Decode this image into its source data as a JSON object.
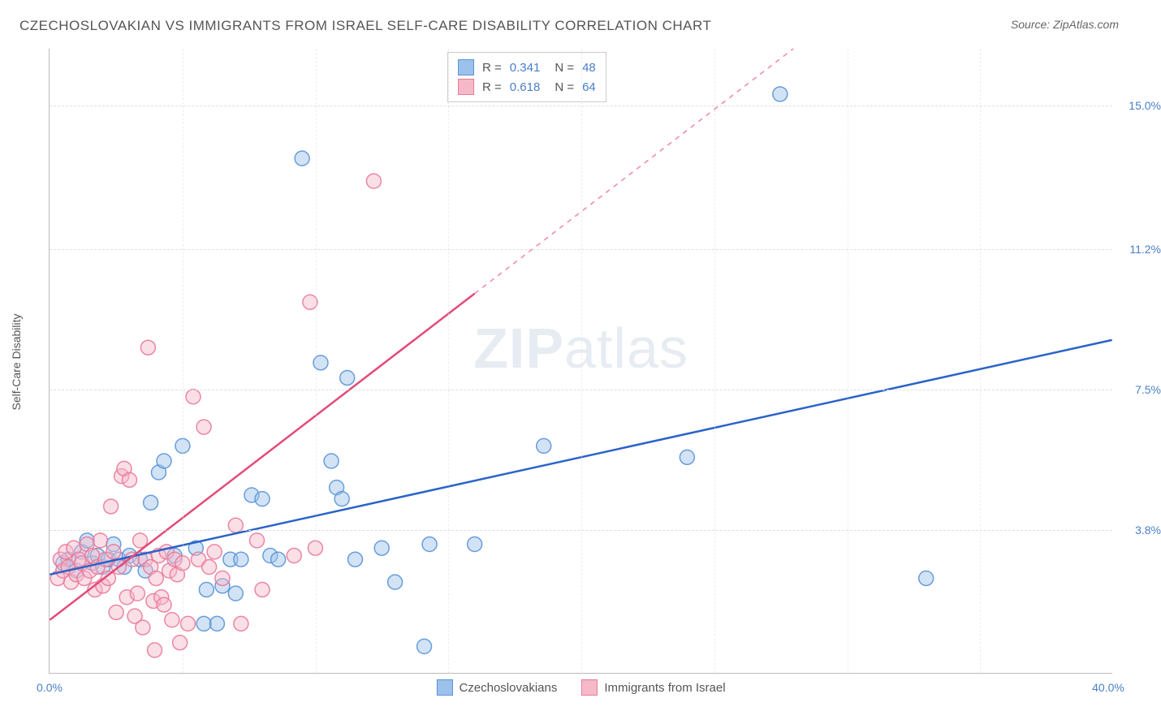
{
  "title": "CZECHOSLOVAKIAN VS IMMIGRANTS FROM ISRAEL SELF-CARE DISABILITY CORRELATION CHART",
  "source_label": "Source: ZipAtlas.com",
  "y_axis_label": "Self-Care Disability",
  "watermark_a": "ZIP",
  "watermark_b": "atlas",
  "chart": {
    "type": "scatter",
    "xlim": [
      0,
      40
    ],
    "ylim": [
      0,
      16.5
    ],
    "x_ticks_label_min": "0.0%",
    "x_ticks_label_max": "40.0%",
    "x_minor_ticks": [
      0,
      5,
      10,
      15,
      20,
      25,
      30,
      35,
      40
    ],
    "y_ticks": [
      3.8,
      7.5,
      11.2,
      15.0
    ],
    "y_tick_labels": [
      "3.8%",
      "7.5%",
      "11.2%",
      "15.0%"
    ],
    "background_color": "#ffffff",
    "grid_color": "#dddddd",
    "axis_color": "#bbbbbb",
    "tick_label_color": "#4a7ec9",
    "marker_radius": 9,
    "marker_opacity": 0.45,
    "marker_stroke_opacity": 0.9,
    "series": [
      {
        "name": "Czechoslovakians",
        "color_fill": "#9cc1ea",
        "color_stroke": "#5a94d6",
        "R": "0.341",
        "N": "48",
        "trend": {
          "x1": 0,
          "y1": 2.6,
          "x2": 40,
          "y2": 8.8,
          "color": "#2a63c9",
          "width": 2.5,
          "dash_after_x": null
        },
        "points": [
          [
            0.5,
            2.9
          ],
          [
            0.7,
            3.0
          ],
          [
            1.0,
            2.7
          ],
          [
            1.2,
            3.2
          ],
          [
            1.4,
            3.5
          ],
          [
            1.6,
            2.9
          ],
          [
            1.8,
            3.1
          ],
          [
            2.0,
            2.8
          ],
          [
            2.2,
            3.0
          ],
          [
            2.4,
            3.4
          ],
          [
            2.6,
            3.0
          ],
          [
            2.8,
            2.8
          ],
          [
            3.0,
            3.1
          ],
          [
            3.4,
            3.0
          ],
          [
            3.6,
            2.7
          ],
          [
            3.8,
            4.5
          ],
          [
            4.1,
            5.3
          ],
          [
            4.3,
            5.6
          ],
          [
            4.7,
            3.1
          ],
          [
            5.0,
            6.0
          ],
          [
            5.5,
            3.3
          ],
          [
            5.8,
            1.3
          ],
          [
            5.9,
            2.2
          ],
          [
            6.3,
            1.3
          ],
          [
            6.5,
            2.3
          ],
          [
            6.8,
            3.0
          ],
          [
            7.0,
            2.1
          ],
          [
            7.2,
            3.0
          ],
          [
            7.6,
            4.7
          ],
          [
            8.0,
            4.6
          ],
          [
            8.3,
            3.1
          ],
          [
            8.6,
            3.0
          ],
          [
            9.5,
            13.6
          ],
          [
            10.2,
            8.2
          ],
          [
            10.6,
            5.6
          ],
          [
            10.8,
            4.9
          ],
          [
            11.0,
            4.6
          ],
          [
            11.2,
            7.8
          ],
          [
            11.5,
            3.0
          ],
          [
            12.5,
            3.3
          ],
          [
            13.0,
            2.4
          ],
          [
            14.1,
            0.7
          ],
          [
            14.3,
            3.4
          ],
          [
            16.0,
            3.4
          ],
          [
            18.6,
            6.0
          ],
          [
            24.0,
            5.7
          ],
          [
            27.5,
            15.3
          ],
          [
            33.0,
            2.5
          ]
        ]
      },
      {
        "name": "Immigrants from Israel",
        "color_fill": "#f6b9c9",
        "color_stroke": "#e97a9a",
        "R": "0.618",
        "N": "64",
        "trend": {
          "x1": 0,
          "y1": 1.4,
          "x2": 28,
          "y2": 16.5,
          "color": "#e24b78",
          "width": 2.5,
          "dash_after_x": 16
        },
        "points": [
          [
            0.3,
            2.5
          ],
          [
            0.4,
            3.0
          ],
          [
            0.5,
            2.7
          ],
          [
            0.6,
            3.2
          ],
          [
            0.7,
            2.8
          ],
          [
            0.8,
            2.4
          ],
          [
            0.9,
            3.3
          ],
          [
            1.0,
            2.6
          ],
          [
            1.1,
            3.0
          ],
          [
            1.2,
            2.9
          ],
          [
            1.3,
            2.5
          ],
          [
            1.4,
            3.4
          ],
          [
            1.5,
            2.7
          ],
          [
            1.6,
            3.1
          ],
          [
            1.7,
            2.2
          ],
          [
            1.8,
            2.8
          ],
          [
            1.9,
            3.5
          ],
          [
            2.0,
            2.3
          ],
          [
            2.1,
            3.0
          ],
          [
            2.2,
            2.5
          ],
          [
            2.3,
            4.4
          ],
          [
            2.4,
            3.2
          ],
          [
            2.5,
            1.6
          ],
          [
            2.6,
            2.8
          ],
          [
            2.7,
            5.2
          ],
          [
            2.8,
            5.4
          ],
          [
            2.9,
            2.0
          ],
          [
            3.0,
            5.1
          ],
          [
            3.1,
            3.0
          ],
          [
            3.2,
            1.5
          ],
          [
            3.3,
            2.1
          ],
          [
            3.4,
            3.5
          ],
          [
            3.5,
            1.2
          ],
          [
            3.6,
            3.0
          ],
          [
            3.7,
            8.6
          ],
          [
            3.8,
            2.8
          ],
          [
            3.9,
            1.9
          ],
          [
            4.0,
            2.5
          ],
          [
            4.1,
            3.1
          ],
          [
            4.2,
            2.0
          ],
          [
            4.3,
            1.8
          ],
          [
            4.4,
            3.2
          ],
          [
            4.5,
            2.7
          ],
          [
            4.6,
            1.4
          ],
          [
            4.7,
            3.0
          ],
          [
            4.8,
            2.6
          ],
          [
            5.0,
            2.9
          ],
          [
            5.2,
            1.3
          ],
          [
            5.4,
            7.3
          ],
          [
            5.6,
            3.0
          ],
          [
            5.8,
            6.5
          ],
          [
            6.0,
            2.8
          ],
          [
            6.2,
            3.2
          ],
          [
            6.5,
            2.5
          ],
          [
            7.0,
            3.9
          ],
          [
            7.2,
            1.3
          ],
          [
            7.8,
            3.5
          ],
          [
            8.0,
            2.2
          ],
          [
            9.2,
            3.1
          ],
          [
            9.8,
            9.8
          ],
          [
            10.0,
            3.3
          ],
          [
            12.2,
            13.0
          ],
          [
            4.9,
            0.8
          ],
          [
            3.95,
            0.6
          ]
        ]
      }
    ]
  },
  "legend_bottom": [
    {
      "label": "Czechoslovakians",
      "fill": "#9cc1ea",
      "stroke": "#5a94d6"
    },
    {
      "label": "Immigrants from Israel",
      "fill": "#f6b9c9",
      "stroke": "#e97a9a"
    }
  ]
}
